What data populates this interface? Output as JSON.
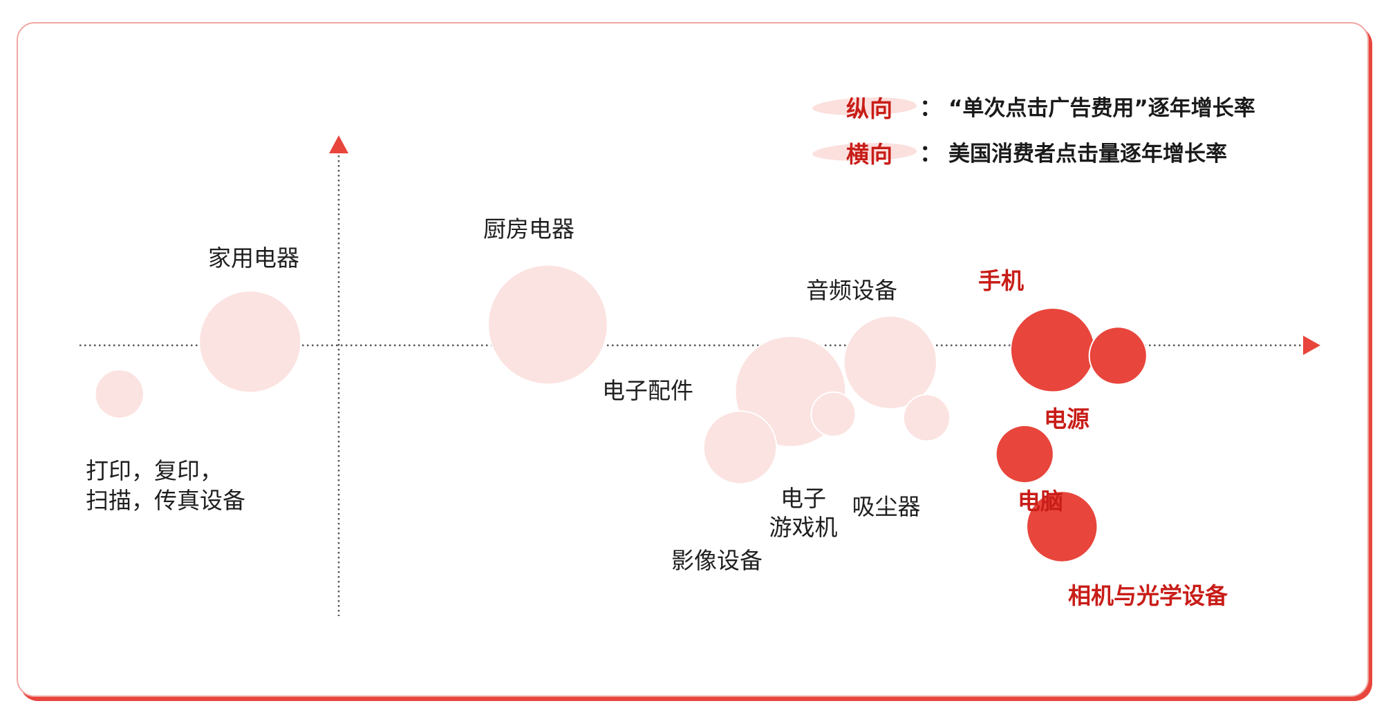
{
  "legend": {
    "vertical_key": "纵向",
    "vertical_colon": "：",
    "vertical_text": "“单次点击广告费用”逐年增长率",
    "horizontal_key": "横向",
    "horizontal_colon": "：",
    "horizontal_text": "美国消费者点击量逐年增长率"
  },
  "colors": {
    "highlight": "#e8453c",
    "normal": "#fbe3e1",
    "highlight_text": "#c81d18",
    "axis": "#555555"
  },
  "chart_data": {
    "type": "scatter",
    "subtype": "bubble",
    "xlabel": "美国消费者点击量逐年增长率",
    "ylabel": "“单次点击广告费用”逐年增长率",
    "grid": false,
    "legend_position": "top-right",
    "points": [
      {
        "label": "家用电器",
        "x": -0.95,
        "y": 0.07,
        "size": 2.3,
        "highlight": false
      },
      {
        "label": "打印，复印，扫描，传真设备",
        "x": -2.35,
        "y": -0.94,
        "size": 1.1,
        "highlight": false
      },
      {
        "label": "厨房电器",
        "x": 2.24,
        "y": 0.4,
        "size": 2.7,
        "highlight": false
      },
      {
        "label": "电子配件",
        "x": 4.84,
        "y": -0.89,
        "size": 2.5,
        "highlight": false
      },
      {
        "label": "音频设备",
        "x": 5.91,
        "y": -0.33,
        "size": 2.1,
        "highlight": false
      },
      {
        "label": "电子游戏机",
        "x": 5.3,
        "y": -1.33,
        "size": 1.0,
        "highlight": false
      },
      {
        "label": "吸尘器",
        "x": 6.3,
        "y": -1.4,
        "size": 1.05,
        "highlight": false
      },
      {
        "label": "影像设备",
        "x": 4.3,
        "y": -1.97,
        "size": 1.65,
        "highlight": false
      },
      {
        "label": "手机",
        "x": 7.65,
        "y": -0.09,
        "size": 1.9,
        "highlight": true
      },
      {
        "label": "电源",
        "x": 8.35,
        "y": -0.2,
        "size": 1.3,
        "highlight": true
      },
      {
        "label": "电脑",
        "x": 7.35,
        "y": -2.1,
        "size": 1.3,
        "highlight": true
      },
      {
        "label": "相机与光学设备",
        "x": 7.75,
        "y": -3.5,
        "size": 1.6,
        "highlight": true
      }
    ],
    "labels": [
      {
        "text": "家用电器",
        "highlight": false,
        "anchor": "middle"
      },
      {
        "text": "打印，复印，",
        "highlight": false,
        "anchor": "start"
      },
      {
        "text": "扫描，传真设备",
        "highlight": false,
        "anchor": "start"
      },
      {
        "text": "厨房电器",
        "highlight": false,
        "anchor": "middle"
      },
      {
        "text": "电子配件",
        "highlight": false,
        "anchor": "middle"
      },
      {
        "text": "音频设备",
        "highlight": false,
        "anchor": "middle"
      },
      {
        "text": "电子",
        "highlight": false,
        "anchor": "middle"
      },
      {
        "text": "游戏机",
        "highlight": false,
        "anchor": "middle"
      },
      {
        "text": "吸尘器",
        "highlight": false,
        "anchor": "middle"
      },
      {
        "text": "影像设备",
        "highlight": false,
        "anchor": "middle"
      },
      {
        "text": "手机",
        "highlight": true,
        "anchor": "middle"
      },
      {
        "text": "电源",
        "highlight": true,
        "anchor": "middle"
      },
      {
        "text": "电脑",
        "highlight": true,
        "anchor": "middle"
      },
      {
        "text": "相机与光学设备",
        "highlight": true,
        "anchor": "start"
      }
    ]
  }
}
